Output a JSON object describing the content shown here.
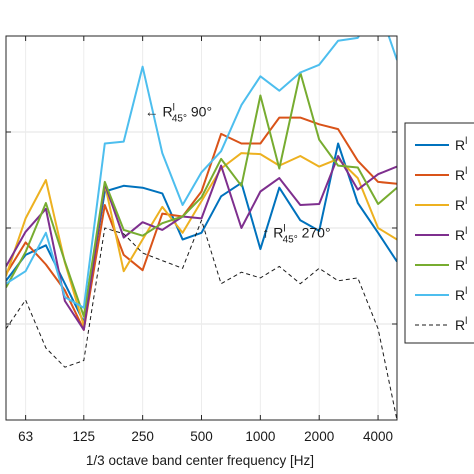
{
  "chart_data": {
    "type": "line",
    "xlabel": "1/3 octave band center frequency [Hz]",
    "ylabel": "",
    "title": "",
    "x_scale": "log",
    "x_tick_labels": [
      "63",
      "125",
      "250",
      "500",
      "1000",
      "2000",
      "4000"
    ],
    "x_tick_values": [
      63,
      125,
      250,
      500,
      1000,
      2000,
      4000
    ],
    "x": [
      50,
      63,
      80,
      100,
      125,
      160,
      200,
      250,
      315,
      400,
      500,
      630,
      800,
      1000,
      1250,
      1600,
      2000,
      2500,
      3150,
      4000,
      5000
    ],
    "xlim": [
      50,
      5000
    ],
    "ylim": [
      0,
      4
    ],
    "y_gridlines": [
      1,
      2,
      3
    ],
    "grid": true,
    "legend_position": "right",
    "series": [
      {
        "name": "R",
        "color": "#0072BD",
        "style": "solid",
        "values": [
          1.45,
          1.72,
          1.82,
          1.42,
          1.02,
          2.38,
          2.44,
          2.42,
          2.36,
          1.88,
          1.95,
          2.33,
          2.47,
          1.78,
          2.42,
          2.08,
          1.97,
          2.88,
          2.26,
          1.95,
          1.65
        ]
      },
      {
        "name": "R",
        "color": "#D95319",
        "style": "solid",
        "values": [
          1.52,
          1.85,
          1.62,
          1.35,
          0.94,
          2.24,
          1.72,
          1.56,
          2.15,
          2.12,
          2.38,
          2.98,
          2.88,
          2.88,
          3.15,
          3.15,
          3.08,
          3.03,
          2.7,
          2.48,
          2.46
        ]
      },
      {
        "name": "R",
        "color": "#EDB120",
        "style": "solid",
        "values": [
          1.5,
          2.1,
          2.5,
          1.64,
          0.98,
          2.46,
          1.55,
          1.88,
          2.22,
          1.95,
          2.28,
          2.62,
          2.78,
          2.77,
          2.65,
          2.75,
          2.64,
          2.72,
          2.52,
          2.0,
          1.88
        ]
      },
      {
        "name": "R",
        "color": "#7E2F8E",
        "style": "solid",
        "values": [
          1.6,
          1.96,
          2.2,
          1.24,
          0.94,
          2.46,
          1.9,
          2.06,
          1.98,
          2.12,
          2.1,
          2.65,
          2.0,
          2.38,
          2.52,
          2.24,
          2.25,
          2.75,
          2.4,
          2.56,
          2.64
        ]
      },
      {
        "name": "R",
        "color": "#77AC30",
        "style": "solid",
        "values": [
          1.38,
          1.75,
          2.26,
          1.65,
          1.08,
          2.48,
          1.98,
          1.92,
          2.05,
          2.12,
          2.32,
          2.72,
          2.44,
          3.38,
          2.62,
          3.62,
          2.92,
          2.65,
          2.63,
          2.25,
          2.42
        ]
      },
      {
        "name": "R",
        "color": "#4DBEEE",
        "style": "solid",
        "values": [
          1.42,
          1.55,
          1.95,
          1.28,
          1.17,
          2.88,
          2.9,
          3.68,
          2.78,
          2.24,
          2.58,
          2.8,
          3.28,
          3.58,
          3.43,
          3.62,
          3.7,
          3.95,
          3.98,
          4.32,
          3.75
        ]
      },
      {
        "name": "R",
        "color": "#1a1a1a",
        "style": "dashed",
        "values": [
          0.95,
          1.25,
          0.75,
          0.55,
          0.62,
          2.0,
          1.94,
          1.74,
          1.66,
          1.58,
          2.08,
          1.42,
          1.54,
          1.48,
          1.6,
          1.42,
          1.58,
          1.45,
          1.48,
          0.95,
          0.0
        ]
      }
    ],
    "annotations": [
      {
        "text_prefix": "← R",
        "sup": "l",
        "sub": "45°",
        "text_suffix": " 90°",
        "x": 250,
        "y": 3.16
      },
      {
        "text_prefix": "↑ R",
        "sup": "l",
        "sub": "45°",
        "text_suffix": " 270°",
        "x": 1000,
        "y": 1.9
      }
    ]
  }
}
